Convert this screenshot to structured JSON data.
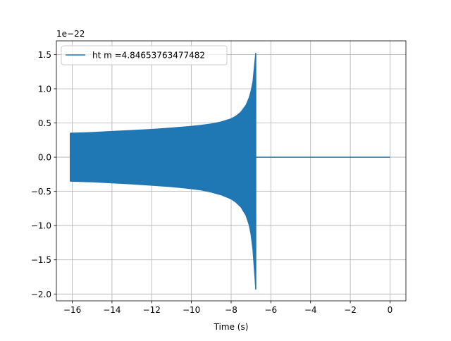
{
  "chart_data": {
    "type": "line",
    "title": "",
    "xlabel": "Time (s)",
    "ylabel": "",
    "y_offset_label": "1e−22",
    "xlim": [
      -16.8,
      0.8
    ],
    "ylim": [
      -2.1,
      1.7
    ],
    "grid": true,
    "legend_position": "top-left",
    "xticks": [
      -16,
      -14,
      -12,
      -10,
      -8,
      -6,
      -4,
      -2,
      0
    ],
    "xtick_labels": [
      "−16",
      "−14",
      "−12",
      "−10",
      "−8",
      "−6",
      "−4",
      "−2",
      "0"
    ],
    "yticks": [
      -2.0,
      -1.5,
      -1.0,
      -0.5,
      0.0,
      0.5,
      1.0,
      1.5
    ],
    "ytick_labels": [
      "−2.0",
      "−1.5",
      "−1.0",
      "−0.5",
      "0.0",
      "0.5",
      "1.0",
      "1.5"
    ],
    "series": [
      {
        "name": "ht m =4.84653763477482",
        "color": "#1f77b4",
        "upper_envelope": {
          "x": [
            -16.1,
            -15.0,
            -14.0,
            -13.0,
            -12.0,
            -11.0,
            -10.0,
            -9.5,
            -9.0,
            -8.5,
            -8.0,
            -7.75,
            -7.5,
            -7.25,
            -7.1,
            -7.0,
            -6.9,
            -6.8,
            -6.76
          ],
          "y": [
            0.35,
            0.36,
            0.375,
            0.39,
            0.405,
            0.425,
            0.45,
            0.465,
            0.485,
            0.515,
            0.56,
            0.6,
            0.66,
            0.76,
            0.86,
            0.96,
            1.1,
            1.4,
            1.52
          ]
        },
        "lower_envelope": {
          "x": [
            -16.1,
            -15.0,
            -14.0,
            -13.0,
            -12.0,
            -11.0,
            -10.0,
            -9.5,
            -9.0,
            -8.5,
            -8.0,
            -7.75,
            -7.5,
            -7.25,
            -7.1,
            -7.0,
            -6.9,
            -6.8,
            -6.76
          ],
          "y": [
            -0.35,
            -0.36,
            -0.375,
            -0.39,
            -0.41,
            -0.43,
            -0.46,
            -0.48,
            -0.51,
            -0.55,
            -0.61,
            -0.66,
            -0.73,
            -0.85,
            -0.98,
            -1.12,
            -1.35,
            -1.75,
            -1.93
          ]
        },
        "post_merger": {
          "x": [
            -6.76,
            0.0
          ],
          "y": [
            0.0,
            0.0
          ]
        }
      }
    ]
  }
}
